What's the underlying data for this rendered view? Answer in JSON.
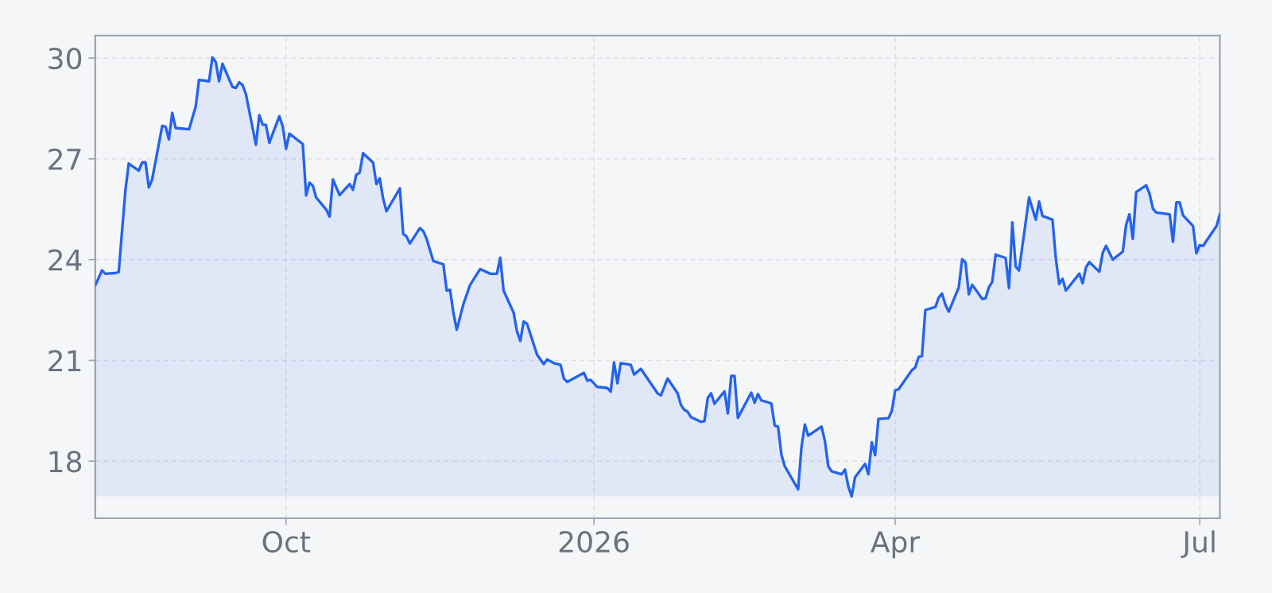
{
  "chart_data": {
    "type": "area",
    "x": [
      "2025-08-05",
      "2025-08-07",
      "2025-08-08",
      "2025-08-11",
      "2025-08-12",
      "2025-08-14",
      "2025-08-15",
      "2025-08-18",
      "2025-08-19",
      "2025-08-20",
      "2025-08-21",
      "2025-08-22",
      "2025-08-25",
      "2025-08-26",
      "2025-08-27",
      "2025-08-28",
      "2025-08-29",
      "2025-09-02",
      "2025-09-04",
      "2025-09-05",
      "2025-09-08",
      "2025-09-09",
      "2025-09-10",
      "2025-09-11",
      "2025-09-12",
      "2025-09-15",
      "2025-09-16",
      "2025-09-17",
      "2025-09-18",
      "2025-09-19",
      "2025-09-22",
      "2025-09-23",
      "2025-09-24",
      "2025-09-25",
      "2025-09-26",
      "2025-09-29",
      "2025-09-30",
      "2025-10-01",
      "2025-10-02",
      "2025-10-06",
      "2025-10-07",
      "2025-10-08",
      "2025-10-09",
      "2025-10-10",
      "2025-10-13",
      "2025-10-14",
      "2025-10-15",
      "2025-10-17",
      "2025-10-20",
      "2025-10-21",
      "2025-10-22",
      "2025-10-23",
      "2025-10-24",
      "2025-10-27",
      "2025-10-28",
      "2025-10-29",
      "2025-10-30",
      "2025-10-31",
      "2025-11-04",
      "2025-11-05",
      "2025-11-06",
      "2025-11-07",
      "2025-11-10",
      "2025-11-11",
      "2025-11-12",
      "2025-11-14",
      "2025-11-17",
      "2025-11-18",
      "2025-11-19",
      "2025-11-20",
      "2025-11-21",
      "2025-11-23",
      "2025-11-25",
      "2025-11-28",
      "2025-12-01",
      "2025-12-03",
      "2025-12-04",
      "2025-12-05",
      "2025-12-08",
      "2025-12-09",
      "2025-12-10",
      "2025-12-11",
      "2025-12-12",
      "2025-12-15",
      "2025-12-17",
      "2025-12-18",
      "2025-12-20",
      "2025-12-22",
      "2025-12-23",
      "2025-12-24",
      "2025-12-29",
      "2025-12-30",
      "2025-12-31",
      "2026-01-02",
      "2026-01-05",
      "2026-01-06",
      "2026-01-07",
      "2026-01-08",
      "2026-01-09",
      "2026-01-12",
      "2026-01-13",
      "2026-01-15",
      "2026-01-20",
      "2026-01-21",
      "2026-01-23",
      "2026-01-26",
      "2026-01-27",
      "2026-01-28",
      "2026-01-29",
      "2026-01-30",
      "2026-02-02",
      "2026-02-03",
      "2026-02-04",
      "2026-02-05",
      "2026-02-06",
      "2026-02-09",
      "2026-02-10",
      "2026-02-11",
      "2026-02-12",
      "2026-02-13",
      "2026-02-17",
      "2026-02-18",
      "2026-02-19",
      "2026-02-20",
      "2026-02-23",
      "2026-02-24",
      "2026-02-25",
      "2026-02-26",
      "2026-02-27",
      "2026-03-03",
      "2026-03-04",
      "2026-03-05",
      "2026-03-06",
      "2026-03-10",
      "2026-03-11",
      "2026-03-12",
      "2026-03-13",
      "2026-03-16",
      "2026-03-17",
      "2026-03-18",
      "2026-03-19",
      "2026-03-20",
      "2026-03-23",
      "2026-03-24",
      "2026-03-25",
      "2026-03-26",
      "2026-03-27",
      "2026-03-30",
      "2026-03-31",
      "2026-04-01",
      "2026-04-02",
      "2026-04-06",
      "2026-04-07",
      "2026-04-08",
      "2026-04-09",
      "2026-04-10",
      "2026-04-13",
      "2026-04-14",
      "2026-04-15",
      "2026-04-16",
      "2026-04-17",
      "2026-04-20",
      "2026-04-21",
      "2026-04-22",
      "2026-04-23",
      "2026-04-24",
      "2026-04-27",
      "2026-04-28",
      "2026-04-29",
      "2026-04-30",
      "2026-05-01",
      "2026-05-04",
      "2026-05-05",
      "2026-05-06",
      "2026-05-07",
      "2026-05-08",
      "2026-05-11",
      "2026-05-13",
      "2026-05-14",
      "2026-05-15",
      "2026-05-18",
      "2026-05-19",
      "2026-05-20",
      "2026-05-21",
      "2026-05-22",
      "2026-05-26",
      "2026-05-27",
      "2026-05-28",
      "2026-05-29",
      "2026-06-01",
      "2026-06-02",
      "2026-06-03",
      "2026-06-05",
      "2026-06-08",
      "2026-06-09",
      "2026-06-10",
      "2026-06-11",
      "2026-06-12",
      "2026-06-15",
      "2026-06-16",
      "2026-06-17",
      "2026-06-18",
      "2026-06-22",
      "2026-06-23",
      "2026-06-24",
      "2026-06-25",
      "2026-06-26",
      "2026-06-29",
      "2026-06-30",
      "2026-07-01",
      "2026-07-02",
      "2026-07-06",
      "2026-07-07"
    ],
    "series": [
      {
        "color": "#2563eb",
        "values": [
          23.23,
          23.68,
          23.58,
          23.6,
          23.63,
          26.06,
          26.86,
          26.65,
          26.89,
          26.9,
          26.15,
          26.39,
          27.98,
          27.96,
          27.58,
          28.37,
          27.92,
          27.88,
          28.55,
          29.35,
          29.31,
          30.02,
          29.88,
          29.31,
          29.83,
          29.14,
          29.11,
          29.28,
          29.2,
          28.93,
          27.42,
          28.3,
          28.02,
          28.01,
          27.48,
          28.27,
          27.97,
          27.3,
          27.75,
          27.44,
          25.91,
          26.29,
          26.2,
          25.85,
          25.49,
          25.28,
          26.39,
          25.92,
          26.25,
          26.08,
          26.53,
          26.59,
          27.17,
          26.89,
          26.25,
          26.42,
          25.82,
          25.44,
          26.12,
          24.77,
          24.69,
          24.48,
          24.94,
          24.85,
          24.62,
          23.96,
          23.86,
          23.08,
          23.1,
          22.42,
          21.91,
          22.68,
          23.25,
          23.72,
          23.58,
          23.58,
          24.06,
          23.08,
          22.42,
          21.86,
          21.58,
          22.16,
          22.09,
          21.17,
          20.89,
          21.03,
          20.92,
          20.87,
          20.46,
          20.36,
          20.63,
          20.4,
          20.42,
          20.21,
          20.18,
          20.07,
          20.94,
          20.32,
          20.92,
          20.87,
          20.58,
          20.75,
          20.02,
          19.96,
          20.46,
          20.02,
          19.67,
          19.53,
          19.47,
          19.31,
          19.17,
          19.19,
          19.88,
          20.02,
          19.71,
          20.08,
          19.42,
          20.54,
          20.54,
          19.29,
          20.04,
          19.74,
          20.0,
          19.81,
          19.72,
          19.06,
          19.03,
          18.2,
          17.85,
          17.16,
          18.42,
          19.09,
          18.76,
          19.03,
          18.6,
          17.85,
          17.7,
          17.61,
          17.75,
          17.25,
          16.95,
          17.52,
          17.92,
          17.61,
          18.56,
          18.18,
          19.26,
          19.28,
          19.5,
          20.11,
          20.14,
          20.71,
          20.79,
          21.1,
          21.13,
          22.5,
          22.59,
          22.87,
          22.99,
          22.66,
          22.45,
          23.18,
          24.01,
          23.92,
          22.97,
          23.25,
          22.83,
          22.85,
          23.18,
          23.34,
          24.15,
          24.05,
          23.15,
          25.11,
          23.79,
          23.68,
          25.85,
          25.19,
          25.73,
          25.3,
          25.19,
          24.03,
          23.27,
          23.43,
          23.08,
          23.58,
          23.3,
          23.77,
          23.93,
          23.64,
          24.2,
          24.41,
          24.0,
          24.24,
          25.04,
          25.35,
          24.62,
          26.01,
          26.21,
          25.96,
          25.52,
          25.4,
          25.35,
          24.53,
          25.7,
          25.7,
          25.32,
          25.0,
          24.19,
          24.43,
          24.41,
          25.0,
          25.35
        ]
      }
    ],
    "xlim": [
      "2025-08-05",
      "2026-07-07"
    ],
    "xticks": [
      {
        "value": "2025-10-01",
        "label": "Oct"
      },
      {
        "value": "2026-01-01",
        "label": "2026"
      },
      {
        "value": "2026-04-01",
        "label": "Apr"
      },
      {
        "value": "2026-07-01",
        "label": "Jul"
      }
    ],
    "ylim": [
      16.3,
      30.67
    ],
    "yticks": [
      18,
      21,
      24,
      27,
      30
    ],
    "grid": true
  }
}
